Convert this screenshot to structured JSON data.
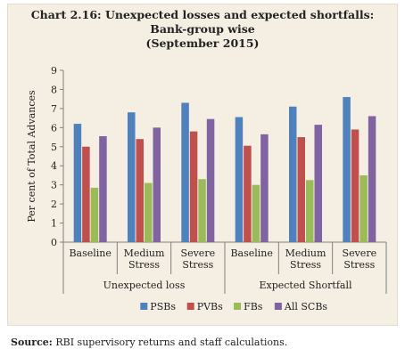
{
  "title": {
    "line1": "Chart 2.16: Unexpected losses and expected shortfalls:",
    "line2": "Bank-group wise",
    "line3": "(September 2015)"
  },
  "source": {
    "label": "Source:",
    "text": " RBI supervisory returns and staff calculations."
  },
  "chart_data": {
    "type": "bar",
    "ylabel": "Per cent of Total Advances",
    "ylim": [
      0,
      9
    ],
    "yticks": [
      "0",
      "1",
      "2",
      "3",
      "4",
      "5",
      "6",
      "7",
      "8",
      "9"
    ],
    "groups": [
      {
        "label": "Unexpected loss",
        "categories": [
          "Baseline",
          "Medium Stress",
          "Severe Stress"
        ]
      },
      {
        "label": "Expected Shortfall",
        "categories": [
          "Baseline",
          "Medium Stress",
          "Severe Stress"
        ]
      }
    ],
    "category_lines": [
      [
        "Baseline"
      ],
      [
        "Medium",
        "Stress"
      ],
      [
        "Severe",
        "Stress"
      ],
      [
        "Baseline"
      ],
      [
        "Medium",
        "Stress"
      ],
      [
        "Severe",
        "Stress"
      ]
    ],
    "series": [
      {
        "name": "PSBs",
        "color": "#4f81bd",
        "values": [
          6.2,
          6.8,
          7.3,
          6.55,
          7.1,
          7.6
        ]
      },
      {
        "name": "PVBs",
        "color": "#c0504d",
        "values": [
          5.0,
          5.4,
          5.8,
          5.05,
          5.5,
          5.9
        ]
      },
      {
        "name": "FBs",
        "color": "#9bbb59",
        "values": [
          2.85,
          3.1,
          3.3,
          3.0,
          3.25,
          3.5
        ]
      },
      {
        "name": "All SCBs",
        "color": "#8064a2",
        "values": [
          5.55,
          6.0,
          6.45,
          5.65,
          6.15,
          6.6
        ]
      }
    ],
    "legend_position": "bottom",
    "grid": false
  }
}
